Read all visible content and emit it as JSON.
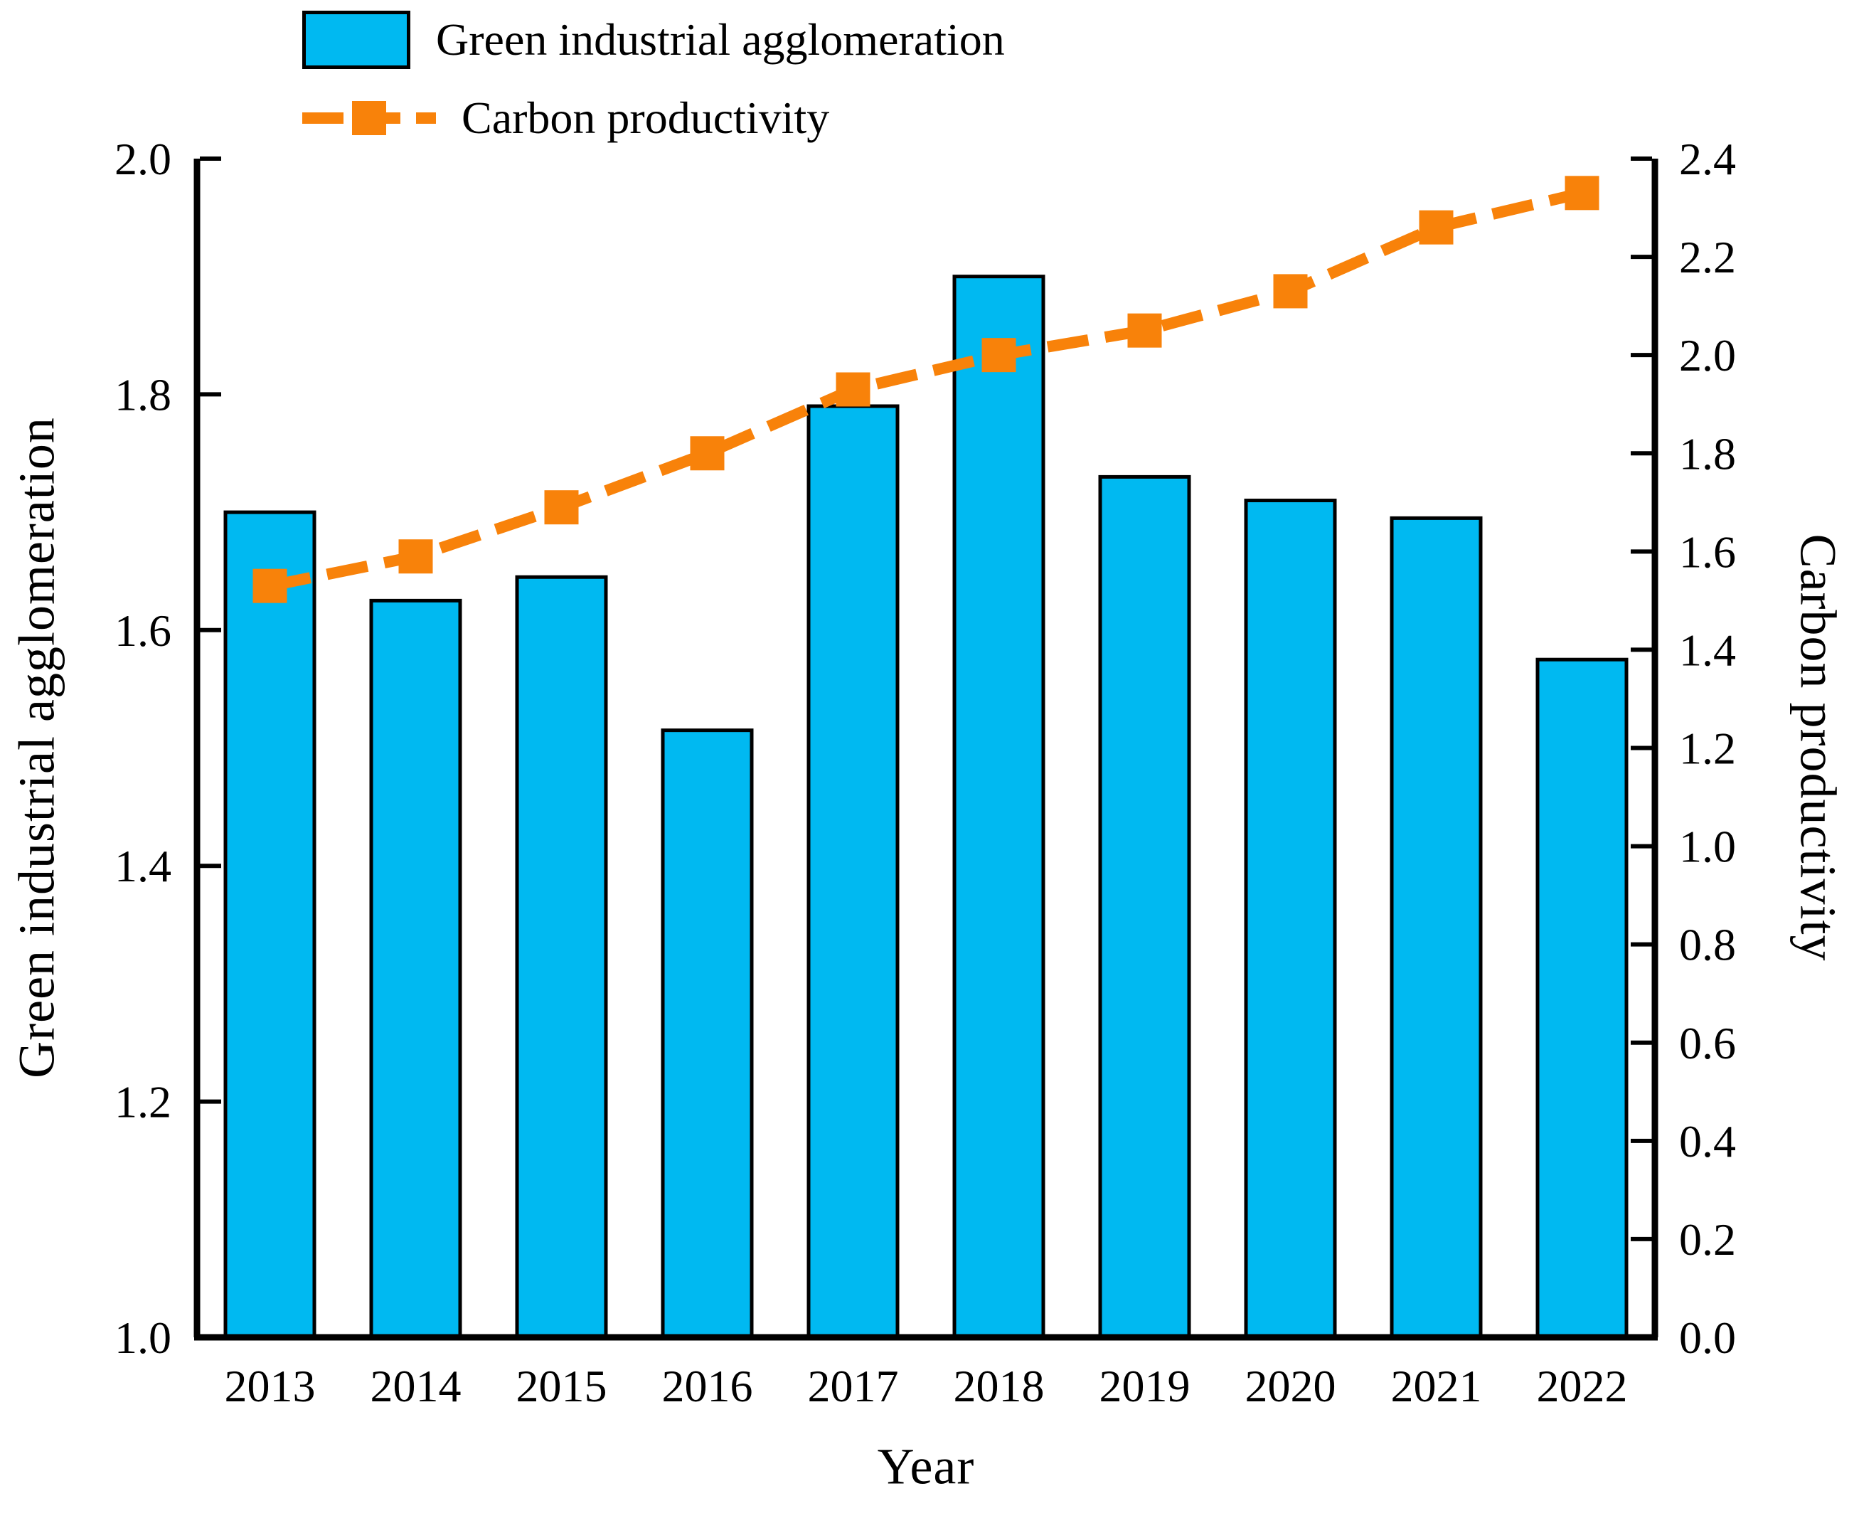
{
  "legend": {
    "items": [
      {
        "label": "Green industrial agglomeration",
        "swatch": "blue-bar-patch"
      },
      {
        "label": "Carbon productivity",
        "swatch": "orange-dashed-line-with-square-marker"
      }
    ]
  },
  "chart_data": {
    "type": "bar+line",
    "categories": [
      "2013",
      "2014",
      "2015",
      "2016",
      "2017",
      "2018",
      "2019",
      "2020",
      "2021",
      "2022"
    ],
    "series": [
      {
        "name": "Green industrial agglomeration",
        "type": "bar",
        "axis": "left",
        "color": "#00B9F1",
        "edge_color": "#000000",
        "values": [
          1.7,
          1.625,
          1.645,
          1.515,
          1.79,
          1.9,
          1.73,
          1.71,
          1.695,
          1.575
        ]
      },
      {
        "name": "Carbon productivity",
        "type": "line",
        "axis": "right",
        "color": "#F8820A",
        "line_style": "dashed",
        "marker": "square",
        "values": [
          1.53,
          1.59,
          1.69,
          1.8,
          1.93,
          2.0,
          2.05,
          2.13,
          2.26,
          2.33
        ]
      }
    ],
    "xlabel": "Year",
    "left_axis": {
      "label": "Green industrial agglomeration",
      "min": 1.0,
      "max": 2.0,
      "ticks": [
        "1.0",
        "1.2",
        "1.4",
        "1.6",
        "1.8",
        "2.0"
      ]
    },
    "right_axis": {
      "label": "Carbon productivity",
      "min": 0.0,
      "max": 2.4,
      "ticks": [
        "0.0",
        "0.2",
        "0.4",
        "0.6",
        "0.8",
        "1.0",
        "1.2",
        "1.4",
        "1.6",
        "1.8",
        "2.0",
        "2.2",
        "2.4"
      ]
    },
    "grid": false,
    "legend_position": "upper-left"
  }
}
